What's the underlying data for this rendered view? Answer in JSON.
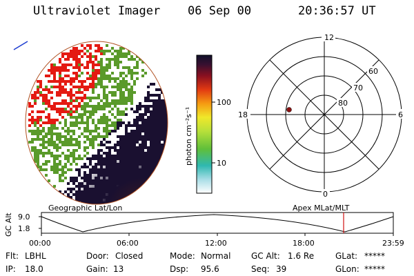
{
  "header": {
    "instrument": "Ultraviolet Imager",
    "date": "06 Sep 00",
    "time": "20:36:57 UT"
  },
  "colorbar": {
    "unit_label": "photon cm⁻²s⁻¹",
    "ticks": [
      "100",
      "10"
    ]
  },
  "polar_plot": {
    "mlt_labels": [
      "12",
      "18",
      "6",
      "0"
    ],
    "lat_labels": [
      "60",
      "70",
      "80"
    ]
  },
  "timeline": {
    "left_title": "Geographic Lat/Lon",
    "right_title": "Apex MLat/MLT",
    "y_axis_label": "GC Alt",
    "y_ticks": [
      "9.0",
      "1.8"
    ],
    "x_ticks": [
      "00:00",
      "06:00",
      "12:00",
      "18:00",
      "23:59"
    ],
    "current_time_marker": "20:37"
  },
  "footer": {
    "row1": [
      {
        "label": "Flt:",
        "value": "LBHL"
      },
      {
        "label": "Door:",
        "value": "Closed"
      },
      {
        "label": "Mode:",
        "value": "Normal"
      },
      {
        "label": "GC Alt:",
        "value": "1.6 Re"
      },
      {
        "label": "GLat:",
        "value": "*****"
      }
    ],
    "row2": [
      {
        "label": "IP:",
        "value": "18.0"
      },
      {
        "label": "Gain:",
        "value": "13"
      },
      {
        "label": "Dsp:",
        "value": "95.6"
      },
      {
        "label": "Seq:",
        "value": "39"
      },
      {
        "label": "GLon:",
        "value": "*****"
      }
    ]
  },
  "colors": {
    "aurora_red": "#e41a12",
    "aurora_green": "#5a9a2a",
    "dark_navy": "#1a1030",
    "marker": "#8b1010",
    "time_marker": "#d01010"
  }
}
